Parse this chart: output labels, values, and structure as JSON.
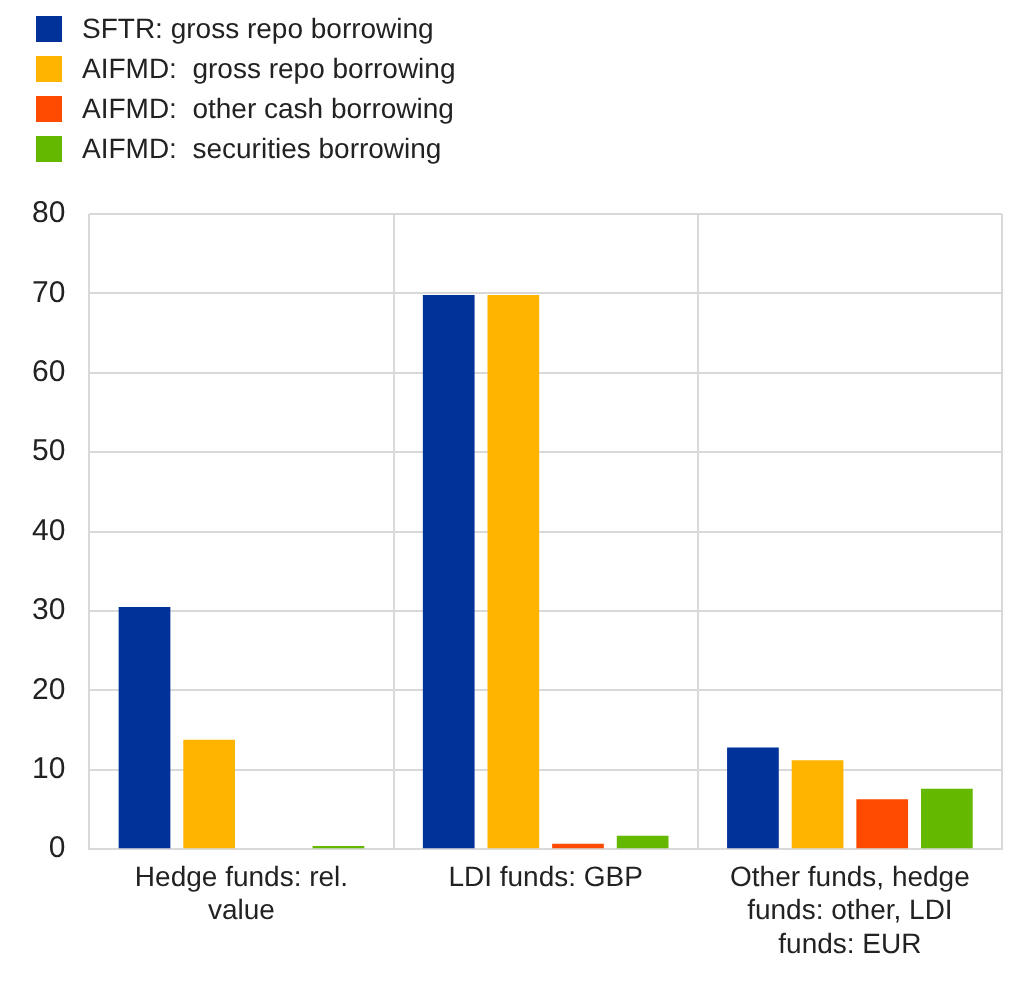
{
  "chart_data": {
    "type": "bar",
    "categories": [
      "Hedge funds: rel. value",
      "LDI funds: GBP",
      "Other funds, hedge funds: other, LDI funds: EUR"
    ],
    "series": [
      {
        "name": "SFTR: gross repo borrowing",
        "color": "#003299",
        "values": [
          30.5,
          69.8,
          12.8
        ]
      },
      {
        "name": "AIFMD:  gross repo borrowing",
        "color": "#ffb400",
        "values": [
          13.8,
          69.8,
          11.2
        ]
      },
      {
        "name": "AIFMD:  other cash borrowing",
        "color": "#ff4b00",
        "values": [
          0,
          0.7,
          6.3
        ]
      },
      {
        "name": "AIFMD:  securities borrowing",
        "color": "#65b800",
        "values": [
          0.4,
          1.7,
          7.6
        ]
      }
    ],
    "ylim": [
      0,
      80
    ],
    "yticks": [
      0,
      10,
      20,
      30,
      40,
      50,
      60,
      70,
      80
    ],
    "grid": true,
    "legend": "top left"
  }
}
